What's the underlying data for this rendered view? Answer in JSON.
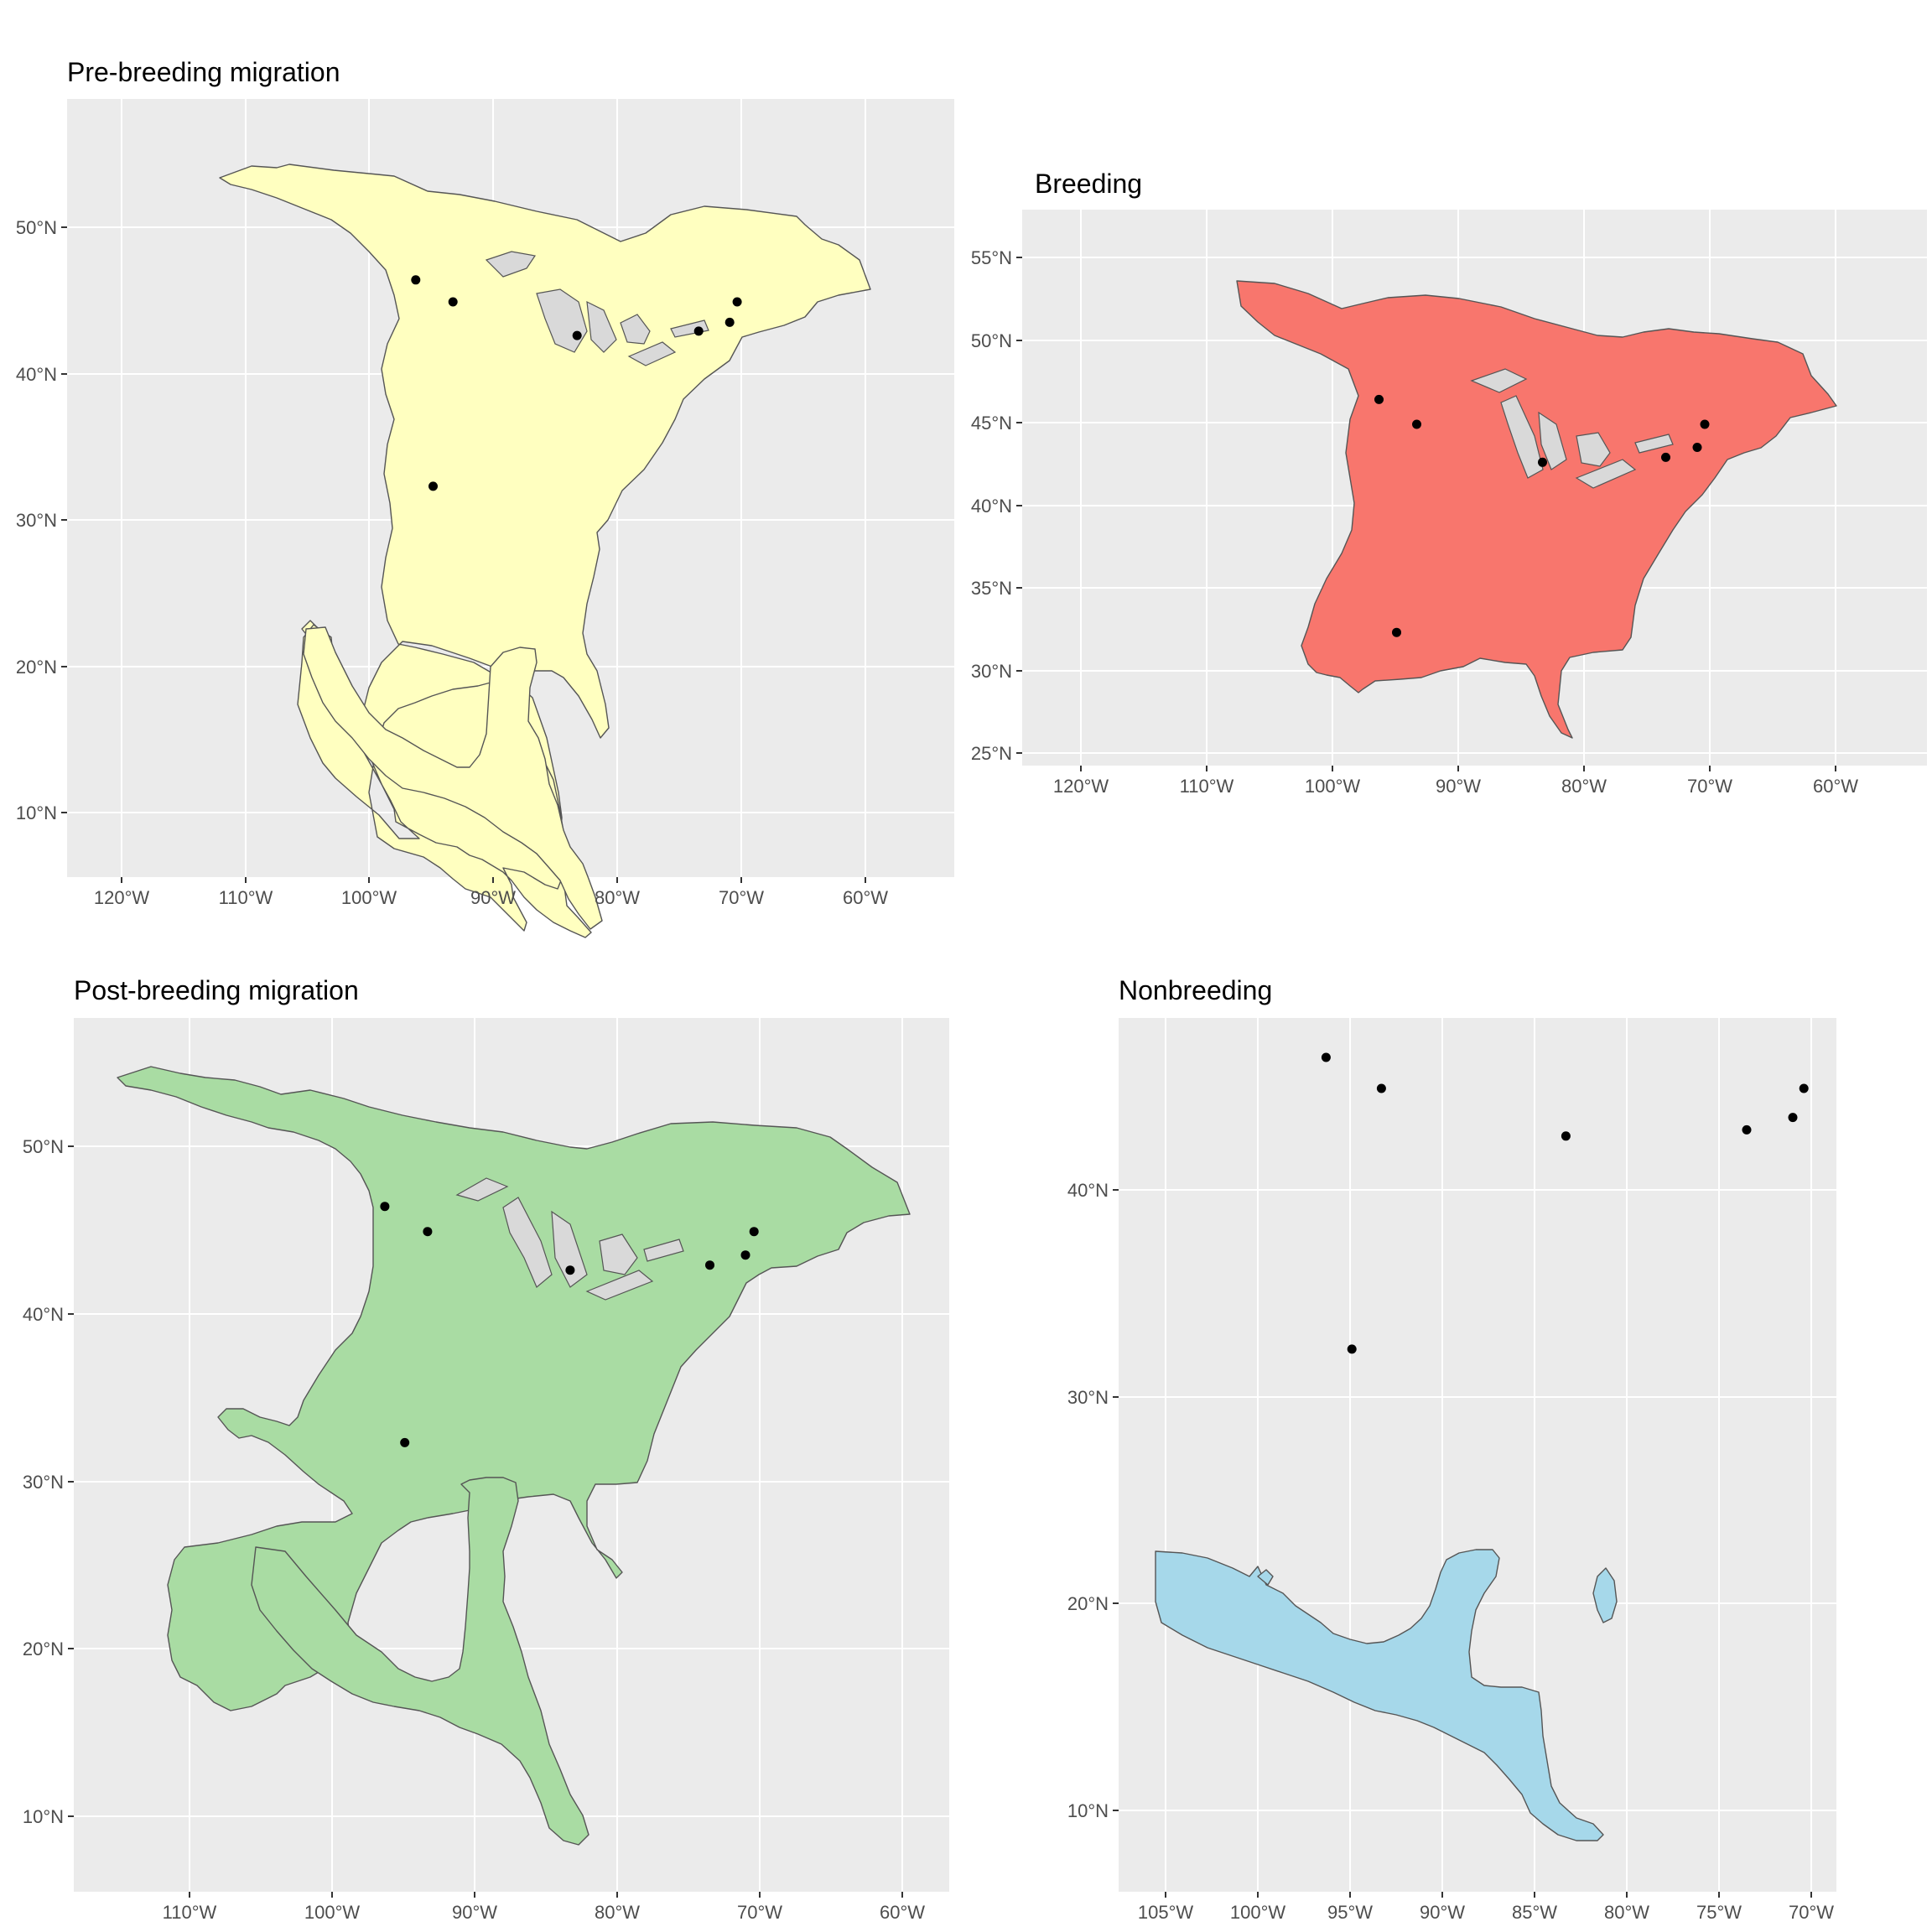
{
  "figure": {
    "panels": [
      {
        "id": "pre-breeding",
        "title": "Pre-breeding migration",
        "fill_color": "#ffffc0",
        "x_ticks": [
          "120°W",
          "110°W",
          "100°W",
          "90°W",
          "80°W",
          "70°W",
          "60°W"
        ],
        "y_ticks": [
          "10°N",
          "20°N",
          "30°N",
          "40°N",
          "50°N"
        ],
        "range_icon": "north-america-range-shape"
      },
      {
        "id": "breeding",
        "title": "Breeding",
        "fill_color": "#f8766d",
        "x_ticks": [
          "120°W",
          "110°W",
          "100°W",
          "90°W",
          "80°W",
          "70°W",
          "60°W"
        ],
        "y_ticks": [
          "25°N",
          "30°N",
          "35°N",
          "40°N",
          "45°N",
          "50°N",
          "55°N"
        ],
        "range_icon": "north-america-range-shape"
      },
      {
        "id": "post-breeding",
        "title": "Post-breeding migration",
        "fill_color": "#a9dca3",
        "x_ticks": [
          "110°W",
          "100°W",
          "90°W",
          "80°W",
          "70°W",
          "60°W"
        ],
        "y_ticks": [
          "10°N",
          "20°N",
          "30°N",
          "40°N",
          "50°N"
        ],
        "range_icon": "north-america-range-shape"
      },
      {
        "id": "nonbreeding",
        "title": "Nonbreeding",
        "fill_color": "#a6d8ea",
        "x_ticks": [
          "105°W",
          "100°W",
          "95°W",
          "90°W",
          "85°W",
          "80°W",
          "75°W",
          "70°W"
        ],
        "y_ticks": [
          "10°N",
          "20°N",
          "30°N",
          "40°N"
        ],
        "range_icon": "central-america-range-shape"
      }
    ],
    "sites": [
      {
        "lon": -96.3,
        "lat": 46.4
      },
      {
        "lon": -93.3,
        "lat": 44.9
      },
      {
        "lon": -83.3,
        "lat": 42.6
      },
      {
        "lon": -73.5,
        "lat": 42.9
      },
      {
        "lon": -71.0,
        "lat": 43.5
      },
      {
        "lon": -70.4,
        "lat": 44.9
      },
      {
        "lon": -94.9,
        "lat": 32.3
      }
    ],
    "panel_background": "#ebebeb"
  }
}
